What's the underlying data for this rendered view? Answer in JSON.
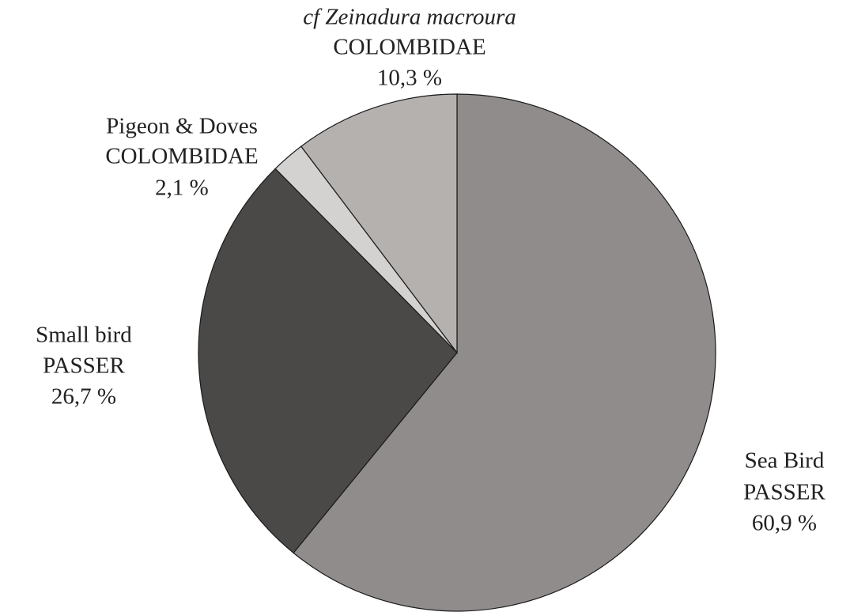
{
  "chart_data": {
    "type": "pie",
    "categories": [
      "Sea Bird",
      "Small bird",
      "Pigeon & Doves",
      "cf Zeinadura macroura"
    ],
    "families": [
      "PASSER",
      "PASSER",
      "COLOMBIDAE",
      "COLOMBIDAE"
    ],
    "values": [
      60.9,
      26.7,
      2.1,
      10.3
    ],
    "value_labels": [
      "60,9 %",
      "26,7 %",
      "2,1 %",
      "10,3 %"
    ],
    "colors": [
      "#8f8c8b",
      "#4b4848",
      "#d4d2d0",
      "#b4b1af"
    ]
  }
}
